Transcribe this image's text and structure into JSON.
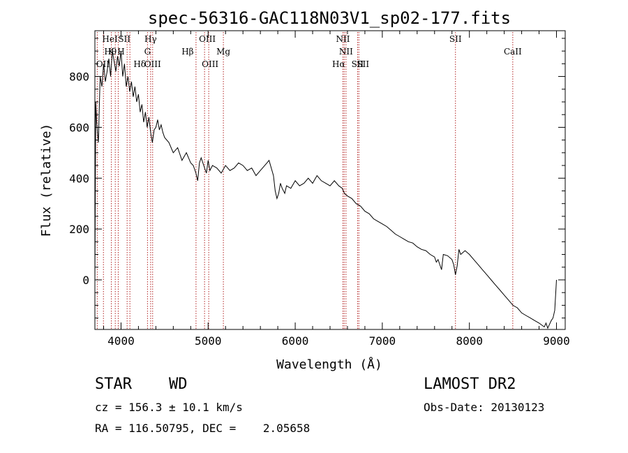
{
  "chart_data": {
    "type": "line",
    "title": "spec-56316-GAC118N03V1_sp02-177.fits",
    "xlabel": "Wavelength (Å)",
    "ylabel": "Flux (relative)",
    "xlim": [
      3700,
      9100
    ],
    "ylim": [
      -195,
      980
    ],
    "x_ticks": [
      "4000",
      "5000",
      "6000",
      "7000",
      "8000",
      "9000"
    ],
    "x_tick_values": [
      4000,
      5000,
      6000,
      7000,
      8000,
      9000
    ],
    "y_ticks": [
      "0",
      "200",
      "400",
      "600",
      "800"
    ],
    "y_tick_values": [
      0,
      200,
      400,
      600,
      800
    ],
    "grid": false,
    "line_color": "#000000",
    "marker_color": "#b22222",
    "series": [
      {
        "x": [
          3700,
          3710,
          3720,
          3740,
          3760,
          3780,
          3800,
          3820,
          3840,
          3860,
          3880,
          3900,
          3920,
          3940,
          3960,
          3980,
          4000,
          4020,
          4040,
          4060,
          4080,
          4100,
          4120,
          4140,
          4160,
          4180,
          4200,
          4220,
          4240,
          4260,
          4280,
          4300,
          4320,
          4340,
          4360,
          4380,
          4400,
          4420,
          4440,
          4460,
          4480,
          4500,
          4550,
          4600,
          4650,
          4700,
          4750,
          4800,
          4830,
          4860,
          4880,
          4900,
          4920,
          4950,
          4980,
          5000,
          5020,
          5050,
          5100,
          5150,
          5200,
          5250,
          5300,
          5350,
          5400,
          5450,
          5500,
          5550,
          5600,
          5650,
          5700,
          5750,
          5770,
          5790,
          5810,
          5830,
          5850,
          5880,
          5900,
          5950,
          6000,
          6050,
          6100,
          6150,
          6200,
          6250,
          6300,
          6350,
          6400,
          6450,
          6500,
          6540,
          6565,
          6600,
          6650,
          6700,
          6750,
          6800,
          6850,
          6900,
          6950,
          7000,
          7050,
          7100,
          7150,
          7200,
          7250,
          7300,
          7350,
          7400,
          7450,
          7500,
          7550,
          7600,
          7620,
          7640,
          7660,
          7680,
          7700,
          7750,
          7800,
          7820,
          7840,
          7860,
          7880,
          7900,
          7950,
          8000,
          8050,
          8100,
          8150,
          8200,
          8250,
          8300,
          8350,
          8400,
          8450,
          8500,
          8550,
          8600,
          8650,
          8700,
          8750,
          8800,
          8840,
          8860,
          8880,
          8900,
          8920,
          8940,
          8960,
          8980,
          9000
        ],
        "y": [
          0,
          700,
          620,
          540,
          800,
          760,
          850,
          780,
          820,
          870,
          800,
          900,
          860,
          820,
          880,
          840,
          900,
          800,
          850,
          760,
          800,
          740,
          780,
          720,
          760,
          700,
          730,
          660,
          690,
          620,
          660,
          600,
          640,
          580,
          540,
          590,
          600,
          630,
          590,
          610,
          580,
          560,
          540,
          500,
          520,
          470,
          500,
          460,
          450,
          420,
          390,
          460,
          480,
          450,
          420,
          470,
          430,
          450,
          440,
          420,
          450,
          430,
          440,
          460,
          450,
          430,
          440,
          410,
          430,
          450,
          470,
          410,
          350,
          320,
          340,
          380,
          360,
          340,
          370,
          360,
          390,
          370,
          380,
          400,
          380,
          410,
          390,
          380,
          370,
          390,
          370,
          360,
          340,
          330,
          320,
          300,
          290,
          270,
          260,
          240,
          230,
          220,
          210,
          195,
          180,
          170,
          160,
          150,
          145,
          130,
          120,
          115,
          100,
          90,
          70,
          80,
          60,
          40,
          100,
          95,
          80,
          60,
          20,
          55,
          120,
          100,
          115,
          100,
          80,
          60,
          40,
          20,
          0,
          -20,
          -40,
          -60,
          -80,
          -100,
          -110,
          -130,
          -140,
          -150,
          -160,
          -170,
          -180,
          -185,
          -170,
          -190,
          -175,
          -160,
          -150,
          -120,
          0
        ]
      }
    ],
    "lines": [
      {
        "label": "OII",
        "x": 3727
      },
      {
        "label": "Hθ",
        "x": 3798
      },
      {
        "label": "HeI",
        "x": 3889
      },
      {
        "label": "K",
        "x": 3934
      },
      {
        "label": "SII",
        "x": 4070
      },
      {
        "label": "H",
        "x": 3968
      },
      {
        "label": "Hδ",
        "x": 4102
      },
      {
        "label": "Hγ",
        "x": 4340
      },
      {
        "label": "G",
        "x": 4304
      },
      {
        "label": "OIII",
        "x": 4363
      },
      {
        "label": "Hβ",
        "x": 4861
      },
      {
        "label": "OIII",
        "x": 5007
      },
      {
        "label": "OIII",
        "x": 4959
      },
      {
        "label": "Mg",
        "x": 5175
      },
      {
        "label": "NII",
        "x": 6548
      },
      {
        "label": "NII",
        "x": 6583
      },
      {
        "label": "Hα",
        "x": 6563
      },
      {
        "label": "SII",
        "x": 6716
      },
      {
        "label": "SII",
        "x": 6731
      },
      {
        "label": "SII",
        "x": 7840
      },
      {
        "label": "CaII",
        "x": 8498
      }
    ]
  },
  "info": {
    "class_label": "STAR",
    "subclass": "WD",
    "survey": "LAMOST DR2",
    "cz": "cz = 156.3 ± 10.1 km/s",
    "obs_date": "Obs-Date: 20130123",
    "radec": "RA = 116.50795, DEC =    2.05658"
  }
}
